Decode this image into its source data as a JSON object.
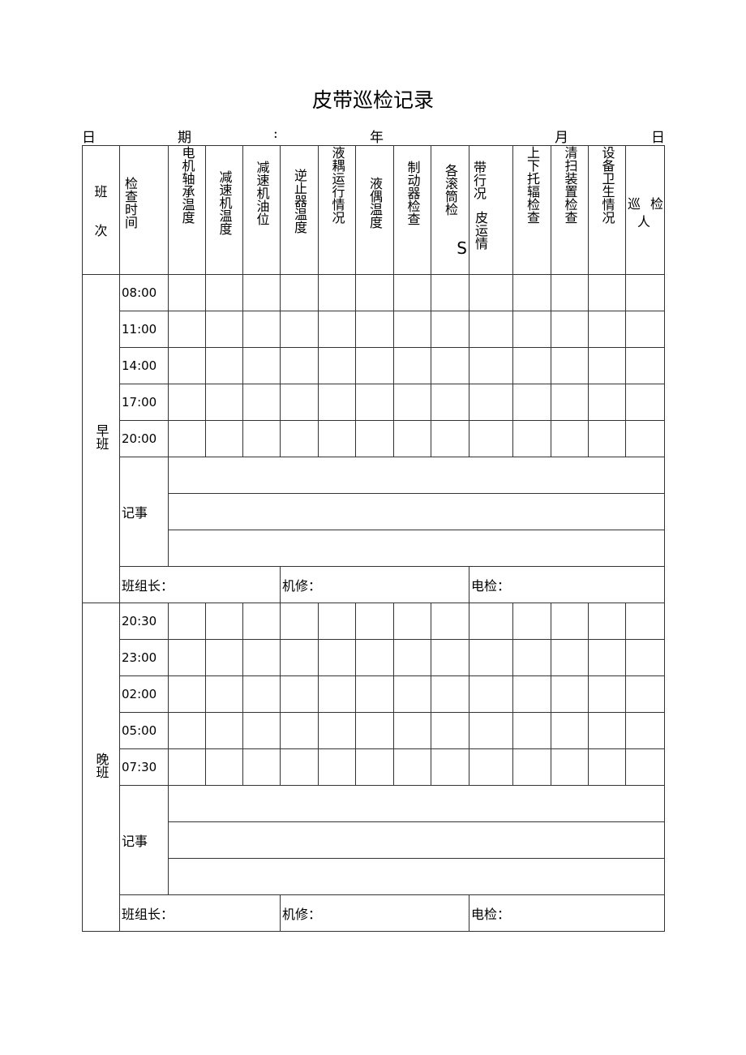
{
  "title": "皮带巡检记录",
  "date_line": {
    "label_ri": "日",
    "label_qi": "期",
    "colon": ":",
    "year": "年",
    "month": "月",
    "day": "日"
  },
  "headers": {
    "shift": [
      "班",
      "次"
    ],
    "check_time": "检查时间",
    "motor_bearing_temp": "电机轴承温度",
    "reducer_temp": "减速机温度",
    "reducer_oil": "减速机油位",
    "backstop_temp": "逆止器温度",
    "fluid_coupling_status": "液耦运行情况",
    "fluid_coupling_temp": "液偶温度",
    "brake_check": "制动器检查",
    "drums_check": "各滚筒检",
    "drums_check_suffix": "S",
    "belt_status_a": "带行况",
    "belt_status_b": "皮运情",
    "idler_check": "上下托辐检查",
    "cleaner_check": "清扫装置检查",
    "hygiene": "设备卫生情况",
    "inspector_a": "巡",
    "inspector_b": "检",
    "inspector_c": "人"
  },
  "day_shift": {
    "label": "早班",
    "times": [
      "08:00",
      "11:00",
      "14:00",
      "17:00",
      "20:00"
    ],
    "notes_label": "记事",
    "team_leader": "班组长：",
    "mechanic": "机修：",
    "electrician": "电检："
  },
  "night_shift": {
    "label": "晚班",
    "times": [
      "20:30",
      "23:00",
      "02:00",
      "05:00",
      "07:30"
    ],
    "notes_label": "记事",
    "team_leader": "班组长：",
    "mechanic": "机修：",
    "electrician": "电检："
  }
}
